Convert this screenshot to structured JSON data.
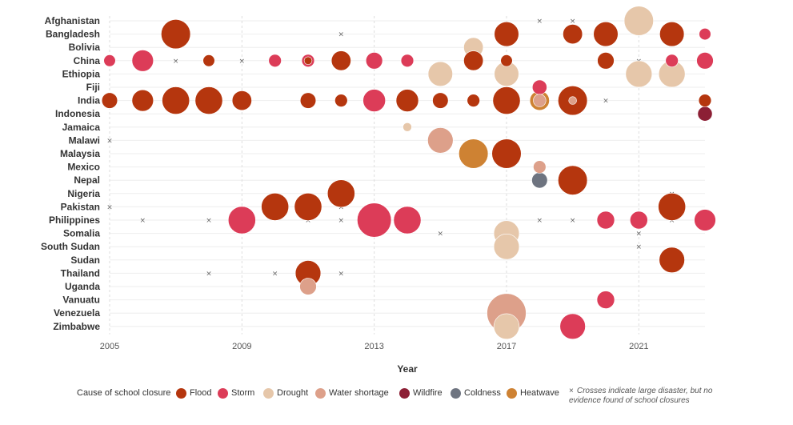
{
  "chart_data": {
    "type": "scatter",
    "xlabel": "Year",
    "x_ticks": [
      2005,
      2009,
      2013,
      2017,
      2021
    ],
    "xlim": [
      2005,
      2023
    ],
    "countries": [
      "Afghanistan",
      "Bangladesh",
      "Bolivia",
      "China",
      "Ethiopia",
      "Fiji",
      "India",
      "Indonesia",
      "Jamaica",
      "Malawi",
      "Malaysia",
      "Mexico",
      "Nepal",
      "Nigeria",
      "Pakistan",
      "Philippines",
      "Somalia",
      "South Sudan",
      "Sudan",
      "Thailand",
      "Uganda",
      "Vanuatu",
      "Venezuela",
      "Zimbabwe"
    ],
    "legend_title": "Cause of school closure",
    "causes": [
      {
        "key": "flood",
        "label": "Flood",
        "color": "#B5360E"
      },
      {
        "key": "storm",
        "label": "Storm",
        "color": "#DC3C58"
      },
      {
        "key": "drought",
        "label": "Drought",
        "color": "#E6C7AA"
      },
      {
        "key": "water",
        "label": "Water shortage",
        "color": "#DDA08A"
      },
      {
        "key": "wildfire",
        "label": "Wildfire",
        "color": "#8C1F35"
      },
      {
        "key": "coldness",
        "label": "Coldness",
        "color": "#6E7480"
      },
      {
        "key": "heatwave",
        "label": "Heatwave",
        "color": "#CE8233"
      }
    ],
    "cross_note": "Crosses indicate large disaster, but no evidence found of school closures",
    "bubbles": [
      {
        "country": "Afghanistan",
        "year": 2021,
        "cause": "drought",
        "size": 3
      },
      {
        "country": "Bangladesh",
        "year": 2007,
        "cause": "flood",
        "size": 3
      },
      {
        "country": "Bangladesh",
        "year": 2017,
        "cause": "flood",
        "size": 2.5
      },
      {
        "country": "Bangladesh",
        "year": 2019,
        "cause": "flood",
        "size": 2
      },
      {
        "country": "Bangladesh",
        "year": 2020,
        "cause": "flood",
        "size": 2.5
      },
      {
        "country": "Bangladesh",
        "year": 2022,
        "cause": "flood",
        "size": 2.5
      },
      {
        "country": "Bangladesh",
        "year": 2023,
        "cause": "storm",
        "size": 1.2
      },
      {
        "country": "Bolivia",
        "year": 2016,
        "cause": "drought",
        "size": 2
      },
      {
        "country": "China",
        "year": 2005,
        "cause": "storm",
        "size": 1.2
      },
      {
        "country": "China",
        "year": 2006,
        "cause": "storm",
        "size": 2.2
      },
      {
        "country": "China",
        "year": 2008,
        "cause": "flood",
        "size": 1.2
      },
      {
        "country": "China",
        "year": 2010,
        "cause": "storm",
        "size": 1.3
      },
      {
        "country": "China",
        "year": 2011,
        "cause": "storm",
        "size": 1.3
      },
      {
        "country": "China",
        "year": 2011,
        "cause": "flood",
        "size": 0.8
      },
      {
        "country": "China",
        "year": 2012,
        "cause": "flood",
        "size": 2
      },
      {
        "country": "China",
        "year": 2013,
        "cause": "storm",
        "size": 1.7
      },
      {
        "country": "China",
        "year": 2014,
        "cause": "storm",
        "size": 1.3
      },
      {
        "country": "China",
        "year": 2016,
        "cause": "flood",
        "size": 2
      },
      {
        "country": "China",
        "year": 2017,
        "cause": "flood",
        "size": 1.2
      },
      {
        "country": "China",
        "year": 2020,
        "cause": "flood",
        "size": 1.7
      },
      {
        "country": "China",
        "year": 2022,
        "cause": "storm",
        "size": 1.3
      },
      {
        "country": "China",
        "year": 2023,
        "cause": "storm",
        "size": 1.7
      },
      {
        "country": "Ethiopia",
        "year": 2015,
        "cause": "drought",
        "size": 2.5
      },
      {
        "country": "Ethiopia",
        "year": 2017,
        "cause": "drought",
        "size": 2.5
      },
      {
        "country": "Ethiopia",
        "year": 2021,
        "cause": "drought",
        "size": 2.7
      },
      {
        "country": "Ethiopia",
        "year": 2022,
        "cause": "drought",
        "size": 2.7
      },
      {
        "country": "Fiji",
        "year": 2018,
        "cause": "storm",
        "size": 1.5
      },
      {
        "country": "India",
        "year": 2005,
        "cause": "flood",
        "size": 1.6
      },
      {
        "country": "India",
        "year": 2006,
        "cause": "flood",
        "size": 2.2
      },
      {
        "country": "India",
        "year": 2007,
        "cause": "flood",
        "size": 2.8
      },
      {
        "country": "India",
        "year": 2008,
        "cause": "flood",
        "size": 2.8
      },
      {
        "country": "India",
        "year": 2009,
        "cause": "flood",
        "size": 2
      },
      {
        "country": "India",
        "year": 2011,
        "cause": "flood",
        "size": 1.6
      },
      {
        "country": "India",
        "year": 2012,
        "cause": "flood",
        "size": 1.3
      },
      {
        "country": "India",
        "year": 2013,
        "cause": "storm",
        "size": 2.3
      },
      {
        "country": "India",
        "year": 2014,
        "cause": "flood",
        "size": 2.3
      },
      {
        "country": "India",
        "year": 2015,
        "cause": "flood",
        "size": 1.6
      },
      {
        "country": "India",
        "year": 2016,
        "cause": "flood",
        "size": 1.3
      },
      {
        "country": "India",
        "year": 2017,
        "cause": "flood",
        "size": 2.8
      },
      {
        "country": "India",
        "year": 2018,
        "cause": "heatwave",
        "size": 2
      },
      {
        "country": "India",
        "year": 2018,
        "cause": "water",
        "size": 1.3
      },
      {
        "country": "India",
        "year": 2019,
        "cause": "flood",
        "size": 3
      },
      {
        "country": "India",
        "year": 2019,
        "cause": "water",
        "size": 0.8
      },
      {
        "country": "India",
        "year": 2023,
        "cause": "flood",
        "size": 1.3
      },
      {
        "country": "Indonesia",
        "year": 2023,
        "cause": "wildfire",
        "size": 1.5
      },
      {
        "country": "Jamaica",
        "year": 2014,
        "cause": "drought",
        "size": 0.9
      },
      {
        "country": "Malawi",
        "year": 2015,
        "cause": "water",
        "size": 2.6
      },
      {
        "country": "Malaysia",
        "year": 2016,
        "cause": "heatwave",
        "size": 3
      },
      {
        "country": "Malaysia",
        "year": 2017,
        "cause": "flood",
        "size": 3
      },
      {
        "country": "Mexico",
        "year": 2018,
        "cause": "water",
        "size": 1.3
      },
      {
        "country": "Nepal",
        "year": 2018,
        "cause": "coldness",
        "size": 1.6
      },
      {
        "country": "Nepal",
        "year": 2019,
        "cause": "flood",
        "size": 3
      },
      {
        "country": "Nigeria",
        "year": 2012,
        "cause": "flood",
        "size": 2.8
      },
      {
        "country": "Pakistan",
        "year": 2010,
        "cause": "flood",
        "size": 2.8
      },
      {
        "country": "Pakistan",
        "year": 2011,
        "cause": "flood",
        "size": 2.8
      },
      {
        "country": "Pakistan",
        "year": 2022,
        "cause": "flood",
        "size": 2.8
      },
      {
        "country": "Philippines",
        "year": 2009,
        "cause": "storm",
        "size": 2.8
      },
      {
        "country": "Philippines",
        "year": 2013,
        "cause": "storm",
        "size": 3.5
      },
      {
        "country": "Philippines",
        "year": 2014,
        "cause": "storm",
        "size": 2.8
      },
      {
        "country": "Philippines",
        "year": 2020,
        "cause": "storm",
        "size": 1.8
      },
      {
        "country": "Philippines",
        "year": 2021,
        "cause": "storm",
        "size": 1.8
      },
      {
        "country": "Philippines",
        "year": 2023,
        "cause": "storm",
        "size": 2.2
      },
      {
        "country": "Somalia",
        "year": 2017,
        "cause": "drought",
        "size": 2.6
      },
      {
        "country": "South Sudan",
        "year": 2017,
        "cause": "drought",
        "size": 2.6
      },
      {
        "country": "Sudan",
        "year": 2022,
        "cause": "flood",
        "size": 2.6
      },
      {
        "country": "Thailand",
        "year": 2011,
        "cause": "flood",
        "size": 2.6
      },
      {
        "country": "Uganda",
        "year": 2011,
        "cause": "water",
        "size": 1.7
      },
      {
        "country": "Vanuatu",
        "year": 2020,
        "cause": "storm",
        "size": 1.8
      },
      {
        "country": "Venezuela",
        "year": 2017,
        "cause": "water",
        "size": 4
      },
      {
        "country": "Zimbabwe",
        "year": 2017,
        "cause": "drought",
        "size": 2.6
      },
      {
        "country": "Zimbabwe",
        "year": 2019,
        "cause": "storm",
        "size": 2.6
      }
    ],
    "crosses": [
      {
        "country": "Afghanistan",
        "year": 2018
      },
      {
        "country": "Afghanistan",
        "year": 2019
      },
      {
        "country": "Bangladesh",
        "year": 2012
      },
      {
        "country": "China",
        "year": 2007
      },
      {
        "country": "China",
        "year": 2009
      },
      {
        "country": "China",
        "year": 2021
      },
      {
        "country": "India",
        "year": 2020
      },
      {
        "country": "Malawi",
        "year": 2005
      },
      {
        "country": "Nigeria",
        "year": 2022
      },
      {
        "country": "Pakistan",
        "year": 2005
      },
      {
        "country": "Pakistan",
        "year": 2012
      },
      {
        "country": "Philippines",
        "year": 2006
      },
      {
        "country": "Philippines",
        "year": 2008
      },
      {
        "country": "Philippines",
        "year": 2011
      },
      {
        "country": "Philippines",
        "year": 2012
      },
      {
        "country": "Philippines",
        "year": 2018
      },
      {
        "country": "Philippines",
        "year": 2019
      },
      {
        "country": "Philippines",
        "year": 2022
      },
      {
        "country": "Somalia",
        "year": 2015
      },
      {
        "country": "Somalia",
        "year": 2021
      },
      {
        "country": "South Sudan",
        "year": 2021
      },
      {
        "country": "Thailand",
        "year": 2008
      },
      {
        "country": "Thailand",
        "year": 2010
      },
      {
        "country": "Thailand",
        "year": 2012
      }
    ]
  }
}
